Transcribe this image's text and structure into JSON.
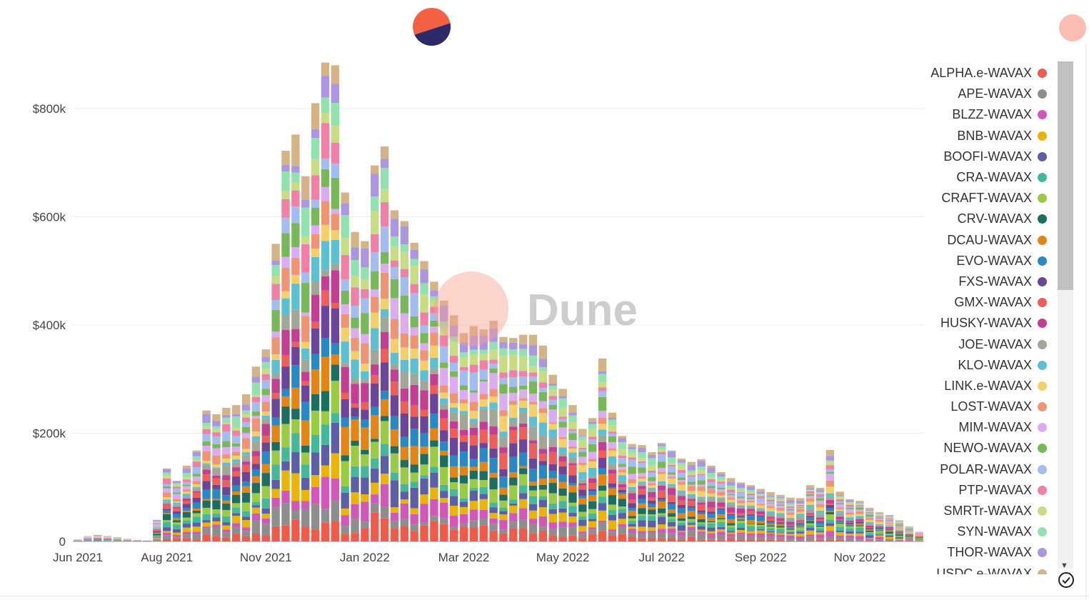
{
  "watermark": "Dune",
  "legend": {
    "items": [
      {
        "label": "ALPHA.e-WAVAX",
        "color": "#ef5b4a"
      },
      {
        "label": "APE-WAVAX",
        "color": "#8e8e8e"
      },
      {
        "label": "BLZZ-WAVAX",
        "color": "#d158b8"
      },
      {
        "label": "BNB-WAVAX",
        "color": "#eab308"
      },
      {
        "label": "BOOFI-WAVAX",
        "color": "#5c5fa6"
      },
      {
        "label": "CRA-WAVAX",
        "color": "#46b89a"
      },
      {
        "label": "CRAFT-WAVAX",
        "color": "#9acb44"
      },
      {
        "label": "CRV-WAVAX",
        "color": "#1e6e60"
      },
      {
        "label": "DCAU-WAVAX",
        "color": "#e28416"
      },
      {
        "label": "EVO-WAVAX",
        "color": "#2a88c4"
      },
      {
        "label": "FXS-WAVAX",
        "color": "#6b4599"
      },
      {
        "label": "GMX-WAVAX",
        "color": "#ee5e5a"
      },
      {
        "label": "HUSKY-WAVAX",
        "color": "#c23f93"
      },
      {
        "label": "JOE-WAVAX",
        "color": "#a2a696"
      },
      {
        "label": "KLO-WAVAX",
        "color": "#5dbfcf"
      },
      {
        "label": "LINK.e-WAVAX",
        "color": "#f4cf6a"
      },
      {
        "label": "LOST-WAVAX",
        "color": "#ef9573"
      },
      {
        "label": "MIM-WAVAX",
        "color": "#dcacf0"
      },
      {
        "label": "NEWO-WAVAX",
        "color": "#79b85a"
      },
      {
        "label": "POLAR-WAVAX",
        "color": "#a3bdf1"
      },
      {
        "label": "PTP-WAVAX",
        "color": "#f080a6"
      },
      {
        "label": "SMRTr-WAVAX",
        "color": "#c8dc84"
      },
      {
        "label": "SYN-WAVAX",
        "color": "#92e2b0"
      },
      {
        "label": "THOR-WAVAX",
        "color": "#ab96e2"
      },
      {
        "label": "USDC.e-WAVAX",
        "color": "#d4b487"
      }
    ]
  },
  "chart_data": {
    "type": "bar",
    "stacked": true,
    "legend_position": "right",
    "grid": true,
    "ylim": [
      0,
      800000
    ],
    "y_ticks": [
      {
        "value": 0,
        "label": "0"
      },
      {
        "value": 200000,
        "label": "$200k"
      },
      {
        "value": 400000,
        "label": "$400k"
      },
      {
        "value": 600000,
        "label": "$600k"
      },
      {
        "value": 800000,
        "label": "$800k"
      }
    ],
    "x_tick_labels": [
      "Jun 2021",
      "Aug 2021",
      "Nov 2021",
      "Jan 2022",
      "Mar 2022",
      "May 2022",
      "Jul 2022",
      "Sep 2022",
      "Nov 2022"
    ],
    "x_tick_week_index": [
      0,
      9,
      19,
      29,
      39,
      49,
      59,
      69,
      79
    ],
    "weekly_totals": [
      4000,
      10000,
      12000,
      10000,
      8000,
      5000,
      3000,
      2000,
      40000,
      135000,
      112000,
      140000,
      168000,
      242000,
      235000,
      247000,
      252000,
      272000,
      323000,
      355000,
      550000,
      722000,
      752000,
      675000,
      810000,
      885000,
      880000,
      645000,
      572000,
      555000,
      695000,
      730000,
      612000,
      592000,
      552000,
      518000,
      480000,
      445000,
      418000,
      385000,
      398000,
      392000,
      408000,
      378000,
      376000,
      382000,
      382000,
      362000,
      308000,
      282000,
      252000,
      208000,
      228000,
      338000,
      238000,
      195000,
      180000,
      178000,
      165000,
      182000,
      168000,
      153000,
      147000,
      152000,
      140000,
      128000,
      117000,
      109000,
      104000,
      97000,
      91000,
      86000,
      81000,
      80000,
      104000,
      99000,
      169000,
      92000,
      78000,
      75000,
      62000,
      54000,
      49000,
      39000,
      28000,
      18000
    ]
  }
}
